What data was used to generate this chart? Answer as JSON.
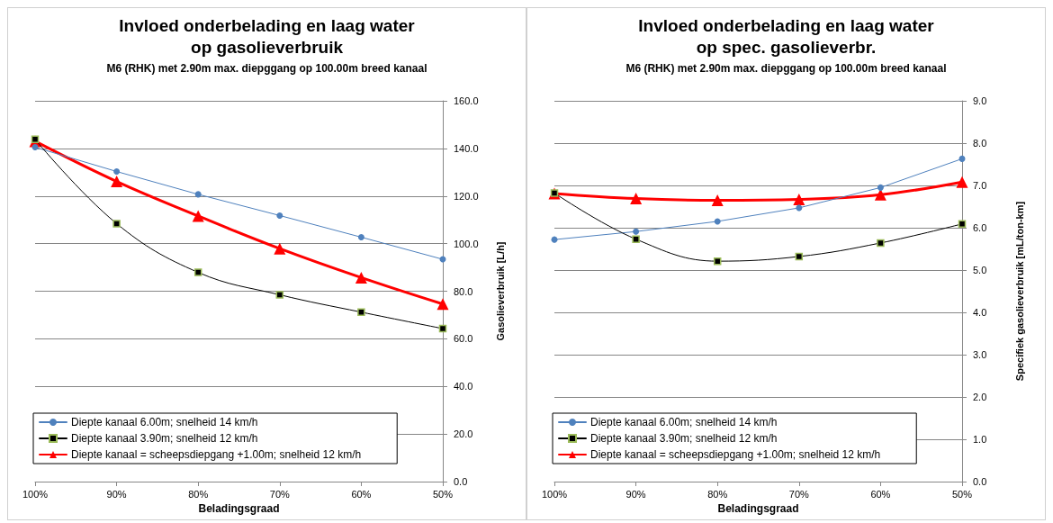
{
  "chart_data": [
    {
      "type": "line",
      "title": "Invloed onderbelading en laag water\nop gasolieverbruik",
      "subtitle": "M6 (RHK) met 2.90m max. diepggang op 100.00m breed kanaal",
      "xlabel": "Beladingsgraad",
      "ylabel": "Gasolieverbruik [L/h]",
      "categories": [
        "100%",
        "90%",
        "80%",
        "70%",
        "60%",
        "50%"
      ],
      "ylim": [
        0,
        160
      ],
      "yticks": [
        {
          "value": 0,
          "label": "0.0"
        },
        {
          "value": 20,
          "label": "20.0"
        },
        {
          "value": 40,
          "label": "40.0"
        },
        {
          "value": 60,
          "label": "60.0"
        },
        {
          "value": 80,
          "label": "80.0"
        },
        {
          "value": 100,
          "label": "100.0"
        },
        {
          "value": 120,
          "label": "120.0"
        },
        {
          "value": 140,
          "label": "140.0"
        },
        {
          "value": 160,
          "label": "160.0"
        }
      ],
      "grid": "y",
      "legend": "bottom left",
      "series": [
        {
          "name": "Diepte kanaal 6.00m; snelheid 14 km/h",
          "color": "#4f81bd",
          "marker": "circle",
          "values": [
            140.5,
            130.3,
            120.7,
            111.8,
            102.7,
            93.4
          ]
        },
        {
          "name": "Diepte kanaal 3.90m; snelheid 12 km/h",
          "color": "#000000",
          "marker": "square",
          "values": [
            143.8,
            108.4,
            87.9,
            78.5,
            71.2,
            64.3
          ]
        },
        {
          "name": "Diepte kanaal = scheepsdiepgang +1.00m; snelheid 12 km/h",
          "color": "#ff0000",
          "marker": "triangle",
          "values": [
            143,
            126.1,
            111.6,
            97.9,
            85.7,
            74.6
          ]
        }
      ]
    },
    {
      "type": "line",
      "title": "Invloed onderbelading en laag water\nop spec. gasolieverbr.",
      "subtitle": "M6 (RHK) met 2.90m max. diepggang op 100.00m breed kanaal",
      "xlabel": "Beladingsgraad",
      "ylabel": "Specifiek gasolieverbruik [mL/ton-km]",
      "categories": [
        "100%",
        "90%",
        "80%",
        "70%",
        "60%",
        "50%"
      ],
      "ylim": [
        0,
        9
      ],
      "yticks": [
        {
          "value": 0,
          "label": "0.0"
        },
        {
          "value": 1,
          "label": "1.0"
        },
        {
          "value": 2,
          "label": "2.0"
        },
        {
          "value": 3,
          "label": "3.0"
        },
        {
          "value": 4,
          "label": "4.0"
        },
        {
          "value": 5,
          "label": "5.0"
        },
        {
          "value": 6,
          "label": "6.0"
        },
        {
          "value": 7,
          "label": "7.0"
        },
        {
          "value": 8,
          "label": "8.0"
        },
        {
          "value": 9,
          "label": "9.0"
        }
      ],
      "grid": "y",
      "legend": "bottom left",
      "series": [
        {
          "name": "Diepte kanaal 6.00m; snelheid 14 km/h",
          "color": "#4f81bd",
          "marker": "circle",
          "values": [
            5.72,
            5.91,
            6.15,
            6.47,
            6.95,
            7.63
          ]
        },
        {
          "name": "Diepte kanaal 3.90m; snelheid 12 km/h",
          "color": "#000000",
          "marker": "square",
          "values": [
            6.82,
            5.73,
            5.21,
            5.32,
            5.64,
            6.09
          ]
        },
        {
          "name": "Diepte kanaal = scheepsdiepgang +1.00m; snelheid 12 km/h",
          "color": "#ff0000",
          "marker": "triangle",
          "values": [
            6.81,
            6.69,
            6.65,
            6.67,
            6.78,
            7.08
          ]
        }
      ]
    }
  ]
}
